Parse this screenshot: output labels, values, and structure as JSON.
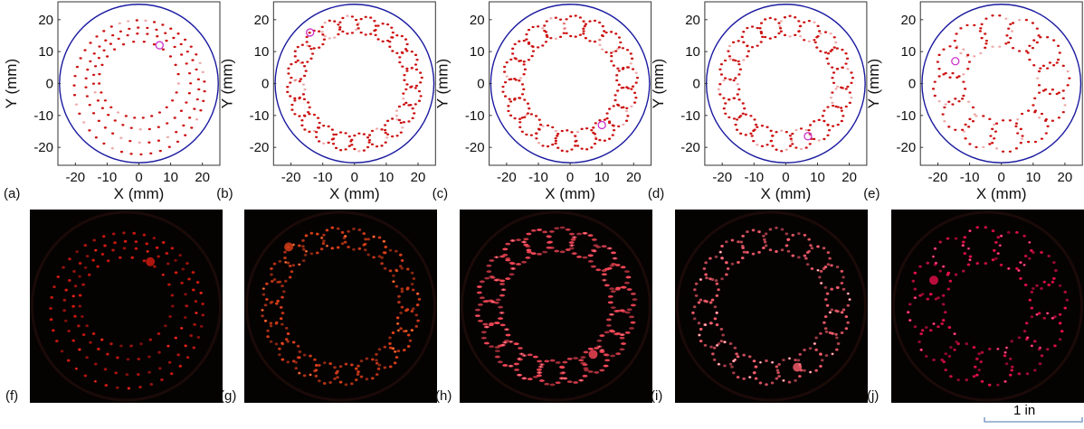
{
  "colors": {
    "boundary": "#1a1aa0",
    "points": "#cc1111",
    "marker": "#cc33cc",
    "photo_bg": "#050202",
    "scale_bar": "#6a8fc0"
  },
  "chart_data": [
    {
      "type": "scatter",
      "panel_label": "(a)",
      "xlabel": "X (mm)",
      "ylabel": "Y (mm)",
      "xlim": [
        -25.5,
        25.5
      ],
      "ylim": [
        -25.6,
        25.6
      ],
      "xticks": [
        "-20",
        "-10",
        "0",
        "10",
        "20"
      ],
      "yticks": [
        "20",
        "10",
        "0",
        "-10",
        "-20"
      ],
      "boundary_radius": 25,
      "pattern": {
        "kind": "rings",
        "radii": [
          12,
          15,
          18,
          21
        ],
        "points_per_ring": [
          26,
          32,
          38,
          44
        ]
      },
      "marker": [
        6.5,
        12
      ]
    },
    {
      "type": "scatter",
      "panel_label": "(b)",
      "xlabel": "X (mm)",
      "ylabel": "Y (mm)",
      "xlim": [
        -25.5,
        25.5
      ],
      "ylim": [
        -25.6,
        25.6
      ],
      "xticks": [
        "-20",
        "-10",
        "0",
        "10",
        "20"
      ],
      "yticks": [
        "20",
        "10",
        "0",
        "-10",
        "-20"
      ],
      "boundary_radius": 25,
      "pattern": {
        "kind": "loops",
        "ring_radius": 18.5,
        "loops": 20,
        "loop_radius": 2.8,
        "points_per_loop": 11
      },
      "marker": [
        -14,
        16
      ]
    },
    {
      "type": "scatter",
      "panel_label": "(c)",
      "xlabel": "X (mm)",
      "ylabel": "Y (mm)",
      "xlim": [
        -25.5,
        25.5
      ],
      "ylim": [
        -25.6,
        25.6
      ],
      "xticks": [
        "-20",
        "-10",
        "0",
        "10",
        "20"
      ],
      "yticks": [
        "20",
        "10",
        "0",
        "-10",
        "-20"
      ],
      "boundary_radius": 25,
      "pattern": {
        "kind": "loops",
        "ring_radius": 18,
        "loops": 18,
        "loop_radius": 3.3,
        "points_per_loop": 13
      },
      "marker": [
        10,
        -13
      ]
    },
    {
      "type": "scatter",
      "panel_label": "(d)",
      "xlabel": "X (mm)",
      "ylabel": "Y (mm)",
      "xlim": [
        -25.5,
        25.5
      ],
      "ylim": [
        -25.6,
        25.6
      ],
      "xticks": [
        "-20",
        "-10",
        "0",
        "10",
        "20"
      ],
      "yticks": [
        "20",
        "10",
        "0",
        "-10",
        "-20"
      ],
      "boundary_radius": 25,
      "pattern": {
        "kind": "loops",
        "ring_radius": 18,
        "loops": 18,
        "loop_radius": 3.2,
        "points_per_loop": 12
      },
      "marker": [
        7,
        -16.5
      ]
    },
    {
      "type": "scatter",
      "panel_label": "(e)",
      "xlabel": "X (mm)",
      "ylabel": "Y (mm)",
      "xlim": [
        -25.5,
        25.5
      ],
      "ylim": [
        -25.6,
        25.6
      ],
      "xticks": [
        "-20",
        "-10",
        "0",
        "10",
        "20"
      ],
      "yticks": [
        "20",
        "10",
        "0",
        "-10",
        "-20"
      ],
      "boundary_radius": 25,
      "pattern": {
        "kind": "loops",
        "ring_radius": 16.5,
        "loops": 12,
        "loop_radius": 5,
        "points_per_loop": 14
      },
      "marker": [
        -14.5,
        7
      ]
    }
  ],
  "photos": [
    {
      "panel_label": "(f)",
      "dot_color": "#d81a10",
      "glow": "#ff3020"
    },
    {
      "panel_label": "(g)",
      "dot_color": "#e0401a",
      "glow": "#ff8040"
    },
    {
      "panel_label": "(h)",
      "dot_color": "#ff4a5a",
      "glow": "#ff8090"
    },
    {
      "panel_label": "(i)",
      "dot_color": "#ff6070",
      "glow": "#ffe0e0"
    },
    {
      "panel_label": "(j)",
      "dot_color": "#e8104a",
      "glow": "#ff60a0"
    }
  ],
  "scale_bar": {
    "label": "1 in"
  }
}
